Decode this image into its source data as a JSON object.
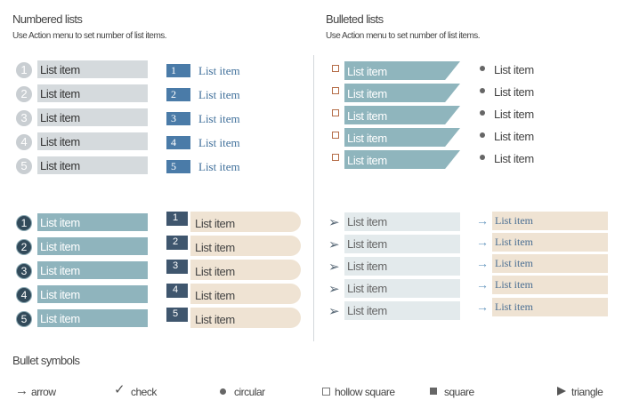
{
  "numbered": {
    "title": "Numbered lists",
    "subtitle": "Use Action menu to set number of list items."
  },
  "bulleted": {
    "title": "Bulleted lists",
    "subtitle": "Use Action menu to set number of list items."
  },
  "item_label": "List item",
  "numbers": [
    "1",
    "2",
    "3",
    "4",
    "5"
  ],
  "legend": {
    "title": "Bullet symbols",
    "items": [
      {
        "icon": "arrow-icon",
        "label": "arrow"
      },
      {
        "icon": "check-icon",
        "label": "check"
      },
      {
        "icon": "circular-bullet-icon",
        "label": "circular"
      },
      {
        "icon": "hollow-square-icon",
        "label": "hollow square"
      },
      {
        "icon": "square-icon",
        "label": "square"
      },
      {
        "icon": "triangle-icon",
        "label": "triangle"
      }
    ]
  },
  "colors": {
    "grey_bar": "#d5dadd",
    "blue_square": "#4a7ba8",
    "teal_bar": "#8fb4bd",
    "navy_tab": "#3f566e",
    "beige_bar": "#efe3d3",
    "light_bar": "#e3eaec",
    "hollow_square": "#b56d48"
  }
}
